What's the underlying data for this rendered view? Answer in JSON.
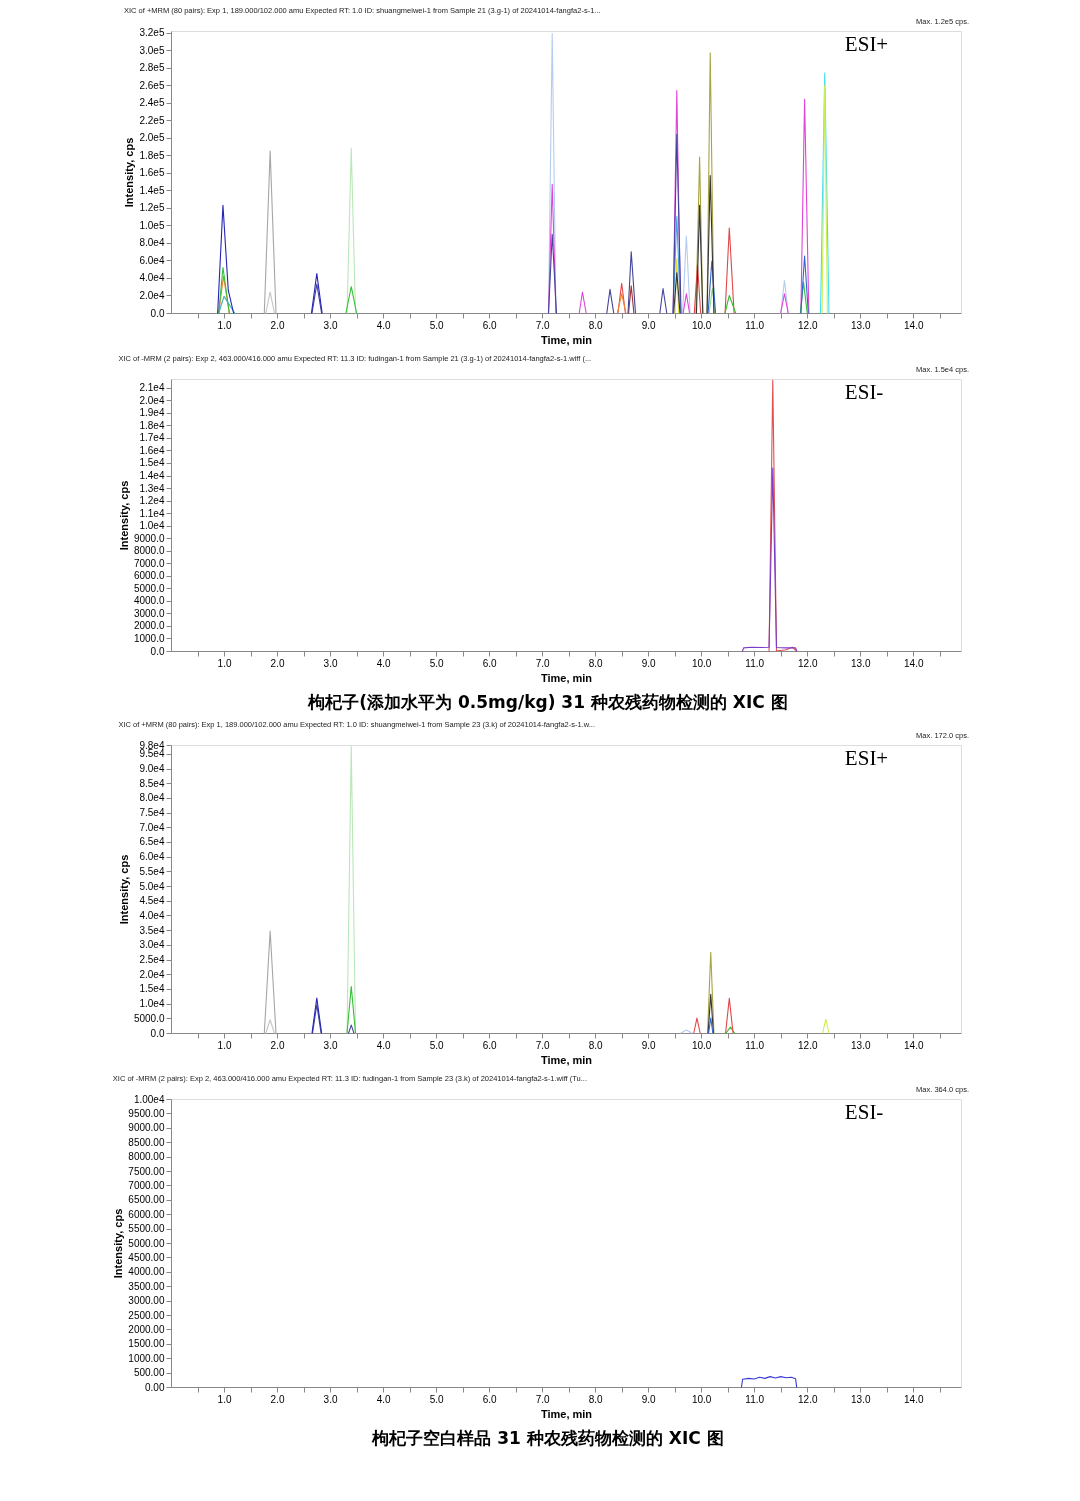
{
  "chart_data": [
    {
      "type": "line",
      "title": "XIC of +MRM (80 pairs): Exp 1, 189.000/102.000 amu Expected RT: 1.0 ID: shuangmeiwei-1 from Sample 21 (3.g-1) of 20241014-fangfa2-s-1...",
      "annotations": [
        "Max. 1.2e5 cps.",
        "ESI+"
      ],
      "xlabel": "Time, min",
      "ylabel": "Intensity, cps",
      "xlim": [
        0,
        14.9
      ],
      "ylim": [
        0,
        322000
      ],
      "xticks": [
        {
          "value": 0.5,
          "label": null
        },
        {
          "value": 1,
          "label": "1.0"
        },
        {
          "value": 1.5,
          "label": null
        },
        {
          "value": 2,
          "label": "2.0"
        },
        {
          "value": 2.5,
          "label": null
        },
        {
          "value": 3,
          "label": "3.0"
        },
        {
          "value": 3.5,
          "label": null
        },
        {
          "value": 4,
          "label": "4.0"
        },
        {
          "value": 4.5,
          "label": null
        },
        {
          "value": 5,
          "label": "5.0"
        },
        {
          "value": 5.5,
          "label": null
        },
        {
          "value": 6,
          "label": "6.0"
        },
        {
          "value": 6.5,
          "label": null
        },
        {
          "value": 7,
          "label": "7.0"
        },
        {
          "value": 7.5,
          "label": null
        },
        {
          "value": 8,
          "label": "8.0"
        },
        {
          "value": 8.5,
          "label": null
        },
        {
          "value": 9,
          "label": "9.0"
        },
        {
          "value": 9.5,
          "label": null
        },
        {
          "value": 10,
          "label": "10.0"
        },
        {
          "value": 10.5,
          "label": null
        },
        {
          "value": 11,
          "label": "11.0"
        },
        {
          "value": 11.5,
          "label": null
        },
        {
          "value": 12,
          "label": "12.0"
        },
        {
          "value": 12.5,
          "label": null
        },
        {
          "value": 13,
          "label": "13.0"
        },
        {
          "value": 13.5,
          "label": null
        },
        {
          "value": 14,
          "label": "14.0"
        },
        {
          "value": 14.5,
          "label": null
        }
      ],
      "yticks": [
        {
          "value": 0,
          "label": "0.0"
        },
        {
          "value": 20000,
          "label": "2.0e4"
        },
        {
          "value": 40000,
          "label": "4.0e4"
        },
        {
          "value": 60000,
          "label": "6.0e4"
        },
        {
          "value": 80000,
          "label": "8.0e4"
        },
        {
          "value": 100000,
          "label": "1.0e5"
        },
        {
          "value": 120000,
          "label": "1.2e5"
        },
        {
          "value": 140000,
          "label": "1.4e5"
        },
        {
          "value": 160000,
          "label": "1.6e5"
        },
        {
          "value": 180000,
          "label": "1.8e5"
        },
        {
          "value": 200000,
          "label": "2.0e5"
        },
        {
          "value": 220000,
          "label": "2.2e5"
        },
        {
          "value": 240000,
          "label": "2.4e5"
        },
        {
          "value": 260000,
          "label": "2.6e5"
        },
        {
          "value": 280000,
          "label": "2.8e5"
        },
        {
          "value": 300000,
          "label": "3.0e5"
        },
        {
          "value": 320000,
          "label": "3.2e5"
        }
      ],
      "series": [
        {
          "color": "#b4ccf0",
          "x": [
            7.12,
            7.19,
            7.26,
            8.5,
            9.65,
            9.72,
            9.79,
            10.6,
            11.5,
            11.57,
            11.64
          ],
          "values": [
            0,
            319000,
            0,
            null,
            0,
            88000,
            0,
            null,
            0,
            37000,
            0
          ]
        },
        {
          "color": "#b8e8b8",
          "x": [
            3.32,
            3.4,
            3.48
          ],
          "values": [
            0,
            188000,
            0
          ]
        },
        {
          "color": "#a6a6a6",
          "x": [
            1.76,
            1.87,
            1.98
          ],
          "values": [
            0,
            185000,
            0
          ]
        },
        {
          "color": "#c4c4c4",
          "x": [
            1.79,
            1.87,
            1.95
          ],
          "values": [
            0,
            24000,
            0
          ]
        },
        {
          "color": "#44dcf0",
          "x": [
            12.25,
            12.33,
            12.41
          ],
          "values": [
            0,
            274000,
            0
          ]
        },
        {
          "color": "#ccf054",
          "x": [
            12.28,
            12.33,
            12.38
          ],
          "values": [
            0,
            260000,
            0
          ]
        },
        {
          "color": "#a8a444",
          "x": [
            9.9,
            9.97,
            10.03,
            10.07,
            10.11,
            10.17,
            10.24
          ],
          "values": [
            0,
            178000,
            0,
            null,
            0,
            297000,
            0
          ]
        },
        {
          "color": "#e044d8",
          "x": [
            7.12,
            7.19,
            7.26,
            7.5,
            7.7,
            7.76,
            7.83,
            8.6,
            9.47,
            9.54,
            9.61,
            9.63,
            9.66,
            9.72,
            9.78,
            10.6,
            11.5,
            11.57,
            11.64,
            11.75,
            11.88,
            11.95,
            12.03
          ],
          "values": [
            0,
            147000,
            0,
            null,
            0,
            24000,
            0,
            null,
            0,
            254000,
            0,
            null,
            0,
            22000,
            0,
            null,
            0,
            22000,
            0,
            null,
            0,
            244000,
            0
          ]
        },
        {
          "color": "#44a4e0",
          "x": [
            9.47,
            9.54,
            9.61
          ],
          "values": [
            0,
            110000,
            0
          ]
        },
        {
          "color": "#e4d834",
          "x": [
            9.505,
            9.54,
            9.575
          ],
          "values": [
            0,
            62000,
            0
          ]
        },
        {
          "color": "#e04848",
          "x": [
            8.43,
            8.5,
            8.57,
            9.2,
            9.87,
            9.93,
            9.99,
            10.2,
            10.45,
            10.53,
            10.62
          ],
          "values": [
            0,
            34000,
            0,
            null,
            0,
            55000,
            0,
            null,
            0,
            97000,
            0
          ]
        },
        {
          "color": "#f08028",
          "x": [
            0.9,
            0.99,
            1.1,
            4.5,
            8.42,
            8.5,
            8.58
          ],
          "values": [
            0,
            42000,
            0,
            null,
            0,
            22000,
            0
          ]
        },
        {
          "color": "#a03434",
          "x": [
            8.63,
            8.68,
            8.73
          ],
          "values": [
            0,
            31000,
            0
          ]
        },
        {
          "color": "#34c034",
          "x": [
            0.9,
            0.98,
            1.1,
            2.0,
            3.3,
            3.4,
            3.5,
            7.0,
            10.45,
            10.53,
            10.65,
            11.2,
            11.87,
            11.93,
            12.0
          ],
          "values": [
            0,
            52000,
            0,
            null,
            0,
            30000,
            0,
            null,
            0,
            20000,
            0,
            null,
            0,
            35000,
            0
          ]
        },
        {
          "color": "#84d884",
          "x": [
            10.15,
            10.21,
            10.27
          ],
          "values": [
            0,
            28000,
            0
          ]
        },
        {
          "color": "#34b4b4",
          "x": [
            0.9,
            1.0,
            1.2
          ],
          "values": [
            0,
            19000,
            0
          ]
        },
        {
          "color": "#3464d0",
          "x": [
            10.13,
            10.2,
            10.27,
            11.0,
            11.88,
            11.95,
            12.02
          ],
          "values": [
            0,
            59000,
            0,
            null,
            0,
            65000,
            0
          ]
        },
        {
          "color": "#343434",
          "x": [
            9.48,
            9.54,
            9.6,
            9.75,
            9.91,
            9.97,
            10.03,
            10.07,
            10.11,
            10.17,
            10.24
          ],
          "values": [
            0,
            46000,
            0,
            null,
            0,
            123000,
            0,
            null,
            0,
            157000,
            0
          ]
        },
        {
          "color": "#44449c",
          "x": [
            2.66,
            2.75,
            2.84,
            5.0,
            7.12,
            7.19,
            7.27,
            7.8,
            8.22,
            8.28,
            8.35,
            8.5,
            8.62,
            8.68,
            8.76,
            9.0,
            9.22,
            9.28,
            9.35,
            9.4,
            9.47,
            9.54,
            9.62
          ],
          "values": [
            0,
            33000,
            0,
            null,
            0,
            90000,
            0,
            null,
            0,
            27000,
            0,
            null,
            0,
            70000,
            0,
            null,
            0,
            28000,
            0,
            null,
            0,
            204000,
            0
          ]
        },
        {
          "color": "#2424b4",
          "x": [
            0.88,
            0.98,
            1.08,
            1.18,
            2.0,
            2.65,
            2.75,
            2.85
          ],
          "values": [
            0,
            123000,
            26000,
            0,
            null,
            0,
            45000,
            0
          ]
        }
      ]
    },
    {
      "type": "line",
      "title": "XIC of -MRM (2 pairs): Exp 2, 463.000/416.000 amu Expected RT: 11.3 ID: fudingan-1 from Sample 21 (3.g-1) of 20241014-fangfa2-s-1.wiff (...",
      "annotations": [
        "Max. 1.5e4 cps.",
        "ESI-",
        "枸杞子(添加水平为 0.5mg/kg) 31 种农残药物检测的 XIC 图"
      ],
      "xlabel": "Time, min",
      "ylabel": "Intensity, cps",
      "xlim": [
        0,
        14.9
      ],
      "ylim": [
        0,
        21700
      ],
      "xticks": [
        {
          "value": 0.5,
          "label": null
        },
        {
          "value": 1,
          "label": "1.0"
        },
        {
          "value": 1.5,
          "label": null
        },
        {
          "value": 2,
          "label": "2.0"
        },
        {
          "value": 2.5,
          "label": null
        },
        {
          "value": 3,
          "label": "3.0"
        },
        {
          "value": 3.5,
          "label": null
        },
        {
          "value": 4,
          "label": "4.0"
        },
        {
          "value": 4.5,
          "label": null
        },
        {
          "value": 5,
          "label": "5.0"
        },
        {
          "value": 5.5,
          "label": null
        },
        {
          "value": 6,
          "label": "6.0"
        },
        {
          "value": 6.5,
          "label": null
        },
        {
          "value": 7,
          "label": "7.0"
        },
        {
          "value": 7.5,
          "label": null
        },
        {
          "value": 8,
          "label": "8.0"
        },
        {
          "value": 8.5,
          "label": null
        },
        {
          "value": 9,
          "label": "9.0"
        },
        {
          "value": 9.5,
          "label": null
        },
        {
          "value": 10,
          "label": "10.0"
        },
        {
          "value": 10.5,
          "label": null
        },
        {
          "value": 11,
          "label": "11.0"
        },
        {
          "value": 11.5,
          "label": null
        },
        {
          "value": 12,
          "label": "12.0"
        },
        {
          "value": 12.5,
          "label": null
        },
        {
          "value": 13,
          "label": "13.0"
        },
        {
          "value": 13.5,
          "label": null
        },
        {
          "value": 14,
          "label": "14.0"
        },
        {
          "value": 14.5,
          "label": null
        }
      ],
      "yticks": [
        {
          "value": 0,
          "label": "0.0"
        },
        {
          "value": 1000,
          "label": "1000.0"
        },
        {
          "value": 2000,
          "label": "2000.0"
        },
        {
          "value": 3000,
          "label": "3000.0"
        },
        {
          "value": 4000,
          "label": "4000.0"
        },
        {
          "value": 5000,
          "label": "5000.0"
        },
        {
          "value": 6000,
          "label": "6000.0"
        },
        {
          "value": 7000,
          "label": "7000.0"
        },
        {
          "value": 8000,
          "label": "8000.0"
        },
        {
          "value": 9000,
          "label": "9000.0"
        },
        {
          "value": 10000,
          "label": "1.0e4"
        },
        {
          "value": 11000,
          "label": "1.1e4"
        },
        {
          "value": 12000,
          "label": "1.2e4"
        },
        {
          "value": 13000,
          "label": "1.3e4"
        },
        {
          "value": 14000,
          "label": "1.4e4"
        },
        {
          "value": 15000,
          "label": "1.5e4"
        },
        {
          "value": 16000,
          "label": "1.6e4"
        },
        {
          "value": 17000,
          "label": "1.7e4"
        },
        {
          "value": 18000,
          "label": "1.8e4"
        },
        {
          "value": 19000,
          "label": "1.9e4"
        },
        {
          "value": 20000,
          "label": "2.0e4"
        },
        {
          "value": 21000,
          "label": "2.1e4"
        }
      ],
      "series": [
        {
          "color": "#e05050",
          "x": [
            11.28,
            11.35,
            11.42,
            11.6,
            11.72,
            11.8
          ],
          "values": [
            0,
            21600,
            0,
            100,
            300,
            0
          ]
        },
        {
          "color": "#7a3cc8",
          "x": [
            10.78,
            10.8,
            10.95,
            11.15,
            11.28,
            11.35,
            11.42,
            11.6,
            11.78,
            11.8
          ],
          "values": [
            0,
            250,
            300,
            280,
            300,
            14600,
            280,
            250,
            250,
            0
          ]
        }
      ]
    },
    {
      "type": "line",
      "title": "XIC of +MRM (80 pairs): Exp 1, 189.000/102.000 amu Expected RT: 1.0 ID: shuangmeiwei-1 from Sample 23 (3.k) of 20241014-fangfa2-s-1.w...",
      "annotations": [
        "Max. 172.0 cps.",
        "ESI+"
      ],
      "xlabel": "Time, min",
      "ylabel": "Intensity, cps",
      "xlim": [
        0,
        14.9
      ],
      "ylim": [
        0,
        98000
      ],
      "xticks": [
        {
          "value": 0.5,
          "label": null
        },
        {
          "value": 1,
          "label": "1.0"
        },
        {
          "value": 1.5,
          "label": null
        },
        {
          "value": 2,
          "label": "2.0"
        },
        {
          "value": 2.5,
          "label": null
        },
        {
          "value": 3,
          "label": "3.0"
        },
        {
          "value": 3.5,
          "label": null
        },
        {
          "value": 4,
          "label": "4.0"
        },
        {
          "value": 4.5,
          "label": null
        },
        {
          "value": 5,
          "label": "5.0"
        },
        {
          "value": 5.5,
          "label": null
        },
        {
          "value": 6,
          "label": "6.0"
        },
        {
          "value": 6.5,
          "label": null
        },
        {
          "value": 7,
          "label": "7.0"
        },
        {
          "value": 7.5,
          "label": null
        },
        {
          "value": 8,
          "label": "8.0"
        },
        {
          "value": 8.5,
          "label": null
        },
        {
          "value": 9,
          "label": "9.0"
        },
        {
          "value": 9.5,
          "label": null
        },
        {
          "value": 10,
          "label": "10.0"
        },
        {
          "value": 10.5,
          "label": null
        },
        {
          "value": 11,
          "label": "11.0"
        },
        {
          "value": 11.5,
          "label": null
        },
        {
          "value": 12,
          "label": "12.0"
        },
        {
          "value": 12.5,
          "label": null
        },
        {
          "value": 13,
          "label": "13.0"
        },
        {
          "value": 13.5,
          "label": null
        },
        {
          "value": 14,
          "label": "14.0"
        },
        {
          "value": 14.5,
          "label": null
        }
      ],
      "yticks": [
        {
          "value": 0,
          "label": "0.0"
        },
        {
          "value": 5000,
          "label": "5000.0"
        },
        {
          "value": 10000,
          "label": "1.0e4"
        },
        {
          "value": 15000,
          "label": "1.5e4"
        },
        {
          "value": 20000,
          "label": "2.0e4"
        },
        {
          "value": 25000,
          "label": "2.5e4"
        },
        {
          "value": 30000,
          "label": "3.0e4"
        },
        {
          "value": 35000,
          "label": "3.5e4"
        },
        {
          "value": 40000,
          "label": "4.0e4"
        },
        {
          "value": 45000,
          "label": "4.5e4"
        },
        {
          "value": 50000,
          "label": "5.0e4"
        },
        {
          "value": 55000,
          "label": "5.5e4"
        },
        {
          "value": 60000,
          "label": "6.0e4"
        },
        {
          "value": 65000,
          "label": "6.5e4"
        },
        {
          "value": 70000,
          "label": "7.0e4"
        },
        {
          "value": 75000,
          "label": "7.5e4"
        },
        {
          "value": 80000,
          "label": "8.0e4"
        },
        {
          "value": 85000,
          "label": "8.5e4"
        },
        {
          "value": 90000,
          "label": "9.0e4"
        },
        {
          "value": 95000,
          "label": "9.5e4"
        },
        {
          "value": 98000,
          "label": "9.8e4"
        }
      ],
      "series": [
        {
          "color": "#b8e8b8",
          "x": [
            3.32,
            3.4,
            3.48
          ],
          "values": [
            0,
            97500,
            0
          ]
        },
        {
          "color": "#a6a6a6",
          "x": [
            1.76,
            1.87,
            1.98
          ],
          "values": [
            0,
            34700,
            0
          ]
        },
        {
          "color": "#c4c4c4",
          "x": [
            1.79,
            1.87,
            1.95
          ],
          "values": [
            0,
            4500,
            0
          ]
        },
        {
          "color": "#a8a444",
          "x": [
            10.12,
            10.18,
            10.24
          ],
          "values": [
            0,
            27500,
            0
          ]
        },
        {
          "color": "#34c034",
          "x": [
            3.32,
            3.4,
            3.48,
            7.0,
            10.47,
            10.55,
            10.63
          ],
          "values": [
            0,
            15800,
            0,
            null,
            0,
            2000,
            0
          ]
        },
        {
          "color": "#e04848",
          "x": [
            9.86,
            9.92,
            9.98,
            10.2,
            10.46,
            10.53,
            10.6
          ],
          "values": [
            0,
            5100,
            0,
            null,
            0,
            11800,
            0
          ]
        },
        {
          "color": "#ccf054",
          "x": [
            12.29,
            12.35,
            12.41
          ],
          "values": [
            0,
            4700,
            0
          ]
        },
        {
          "color": "#b4ccf0",
          "x": [
            9.62,
            9.72,
            9.82
          ],
          "values": [
            0,
            1000,
            0
          ]
        },
        {
          "color": "#343434",
          "x": [
            10.13,
            10.18,
            10.23
          ],
          "values": [
            0,
            13200,
            0
          ]
        },
        {
          "color": "#3464d0",
          "x": [
            10.14,
            10.18,
            10.22
          ],
          "values": [
            0,
            5100,
            0
          ]
        },
        {
          "color": "#44449c",
          "x": [
            2.67,
            2.75,
            2.83,
            3.1,
            3.35,
            3.4,
            3.45
          ],
          "values": [
            0,
            9600,
            0,
            null,
            0,
            2700,
            0
          ]
        },
        {
          "color": "#2424b4",
          "x": [
            2.66,
            2.75,
            2.84
          ],
          "values": [
            0,
            11900,
            0
          ]
        }
      ]
    },
    {
      "type": "line",
      "title": "XIC of -MRM (2 pairs): Exp 2, 463.000/416.000 amu Expected RT: 11.3 ID: fudingan-1 from Sample 23 (3.k) of 20241014-fangfa2-s-1.wiff (Tu...",
      "annotations": [
        "Max. 364.0 cps.",
        "ESI-",
        "枸杞子空白样品 31 种农残药物检测的 XIC 图"
      ],
      "xlabel": "Time, min",
      "ylabel": "Intensity, cps",
      "xlim": [
        0,
        14.9
      ],
      "ylim": [
        0,
        10000
      ],
      "xticks": [
        {
          "value": 0.5,
          "label": null
        },
        {
          "value": 1,
          "label": "1.0"
        },
        {
          "value": 1.5,
          "label": null
        },
        {
          "value": 2,
          "label": "2.0"
        },
        {
          "value": 2.5,
          "label": null
        },
        {
          "value": 3,
          "label": "3.0"
        },
        {
          "value": 3.5,
          "label": null
        },
        {
          "value": 4,
          "label": "4.0"
        },
        {
          "value": 4.5,
          "label": null
        },
        {
          "value": 5,
          "label": "5.0"
        },
        {
          "value": 5.5,
          "label": null
        },
        {
          "value": 6,
          "label": "6.0"
        },
        {
          "value": 6.5,
          "label": null
        },
        {
          "value": 7,
          "label": "7.0"
        },
        {
          "value": 7.5,
          "label": null
        },
        {
          "value": 8,
          "label": "8.0"
        },
        {
          "value": 8.5,
          "label": null
        },
        {
          "value": 9,
          "label": "9.0"
        },
        {
          "value": 9.5,
          "label": null
        },
        {
          "value": 10,
          "label": "10.0"
        },
        {
          "value": 10.5,
          "label": null
        },
        {
          "value": 11,
          "label": "11.0"
        },
        {
          "value": 11.5,
          "label": null
        },
        {
          "value": 12,
          "label": "12.0"
        },
        {
          "value": 12.5,
          "label": null
        },
        {
          "value": 13,
          "label": "13.0"
        },
        {
          "value": 13.5,
          "label": null
        },
        {
          "value": 14,
          "label": "14.0"
        },
        {
          "value": 14.5,
          "label": null
        }
      ],
      "yticks": [
        {
          "value": 0,
          "label": "0.00"
        },
        {
          "value": 500,
          "label": "500.00"
        },
        {
          "value": 1000,
          "label": "1000.00"
        },
        {
          "value": 1500,
          "label": "1500.00"
        },
        {
          "value": 2000,
          "label": "2000.00"
        },
        {
          "value": 2500,
          "label": "2500.00"
        },
        {
          "value": 3000,
          "label": "3000.00"
        },
        {
          "value": 3500,
          "label": "3500.00"
        },
        {
          "value": 4000,
          "label": "4000.00"
        },
        {
          "value": 4500,
          "label": "4500.00"
        },
        {
          "value": 5000,
          "label": "5000.00"
        },
        {
          "value": 5500,
          "label": "5500.00"
        },
        {
          "value": 6000,
          "label": "6000.00"
        },
        {
          "value": 6500,
          "label": "6500.00"
        },
        {
          "value": 7000,
          "label": "7000.00"
        },
        {
          "value": 7500,
          "label": "7500.00"
        },
        {
          "value": 8000,
          "label": "8000.00"
        },
        {
          "value": 8500,
          "label": "8500.00"
        },
        {
          "value": 9000,
          "label": "9000.00"
        },
        {
          "value": 9500,
          "label": "9500.00"
        },
        {
          "value": 10000,
          "label": "1.00e4"
        }
      ],
      "series": [
        {
          "color": "#3a3ad0",
          "x": [
            10.76,
            10.78,
            10.9,
            11.0,
            11.1,
            11.2,
            11.3,
            11.4,
            11.5,
            11.6,
            11.7,
            11.78,
            11.8
          ],
          "values": [
            0,
            270,
            300,
            280,
            340,
            300,
            360,
            310,
            360,
            320,
            340,
            290,
            0
          ]
        }
      ]
    }
  ]
}
